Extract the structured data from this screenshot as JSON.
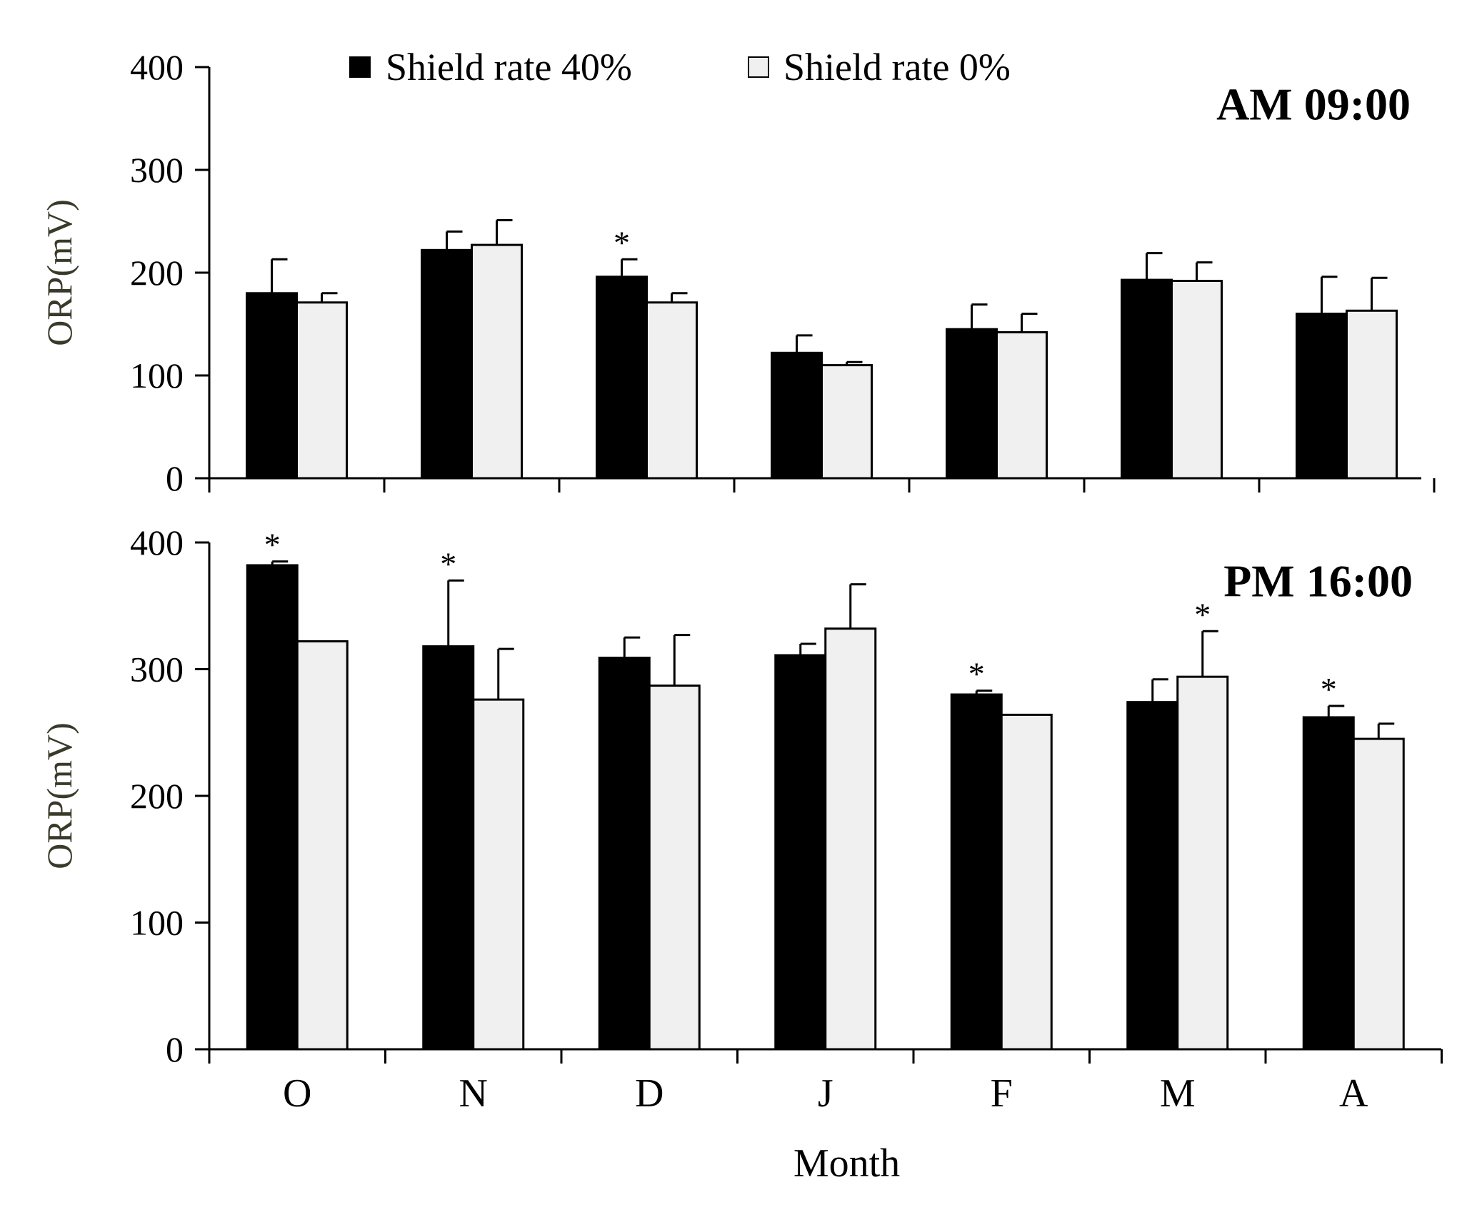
{
  "chart_data": [
    {
      "type": "bar",
      "title": "AM 09:00",
      "xlabel": "",
      "ylabel": "ORP(mV)",
      "ylim": [
        0,
        400
      ],
      "yticks": [
        0,
        100,
        200,
        300,
        400
      ],
      "categories": [
        "O",
        "N",
        "D",
        "J",
        "F",
        "M",
        "A"
      ],
      "series": [
        {
          "name": "Shield rate 40%",
          "color": "#000000",
          "values": [
            180,
            222,
            196,
            122,
            145,
            193,
            160
          ],
          "errors": [
            33,
            18,
            17,
            17,
            24,
            26,
            36
          ],
          "significant": [
            false,
            false,
            true,
            false,
            false,
            false,
            false
          ]
        },
        {
          "name": "Shield rate 0%",
          "color": "#f0f0f0",
          "values": [
            171,
            227,
            171,
            110,
            142,
            192,
            163
          ],
          "errors": [
            9,
            24,
            9,
            3,
            18,
            18,
            32
          ],
          "significant": [
            false,
            false,
            false,
            false,
            false,
            false,
            false
          ]
        }
      ],
      "significance_marker": "*"
    },
    {
      "type": "bar",
      "title": "PM 16:00",
      "xlabel": "Month",
      "ylabel": "ORP(mV)",
      "ylim": [
        0,
        400
      ],
      "yticks": [
        0,
        100,
        200,
        300,
        400
      ],
      "categories": [
        "O",
        "N",
        "D",
        "J",
        "F",
        "M",
        "A"
      ],
      "series": [
        {
          "name": "Shield rate 40%",
          "color": "#000000",
          "values": [
            382,
            318,
            309,
            311,
            280,
            274,
            262
          ],
          "errors": [
            3,
            52,
            16,
            9,
            3,
            18,
            9
          ],
          "significant": [
            true,
            true,
            false,
            false,
            true,
            false,
            true
          ]
        },
        {
          "name": "Shield rate 0%",
          "color": "#f0f0f0",
          "values": [
            322,
            276,
            287,
            332,
            264,
            294,
            245
          ],
          "errors": [
            0,
            40,
            40,
            35,
            0,
            36,
            12
          ],
          "significant": [
            false,
            false,
            false,
            false,
            false,
            true,
            false
          ]
        }
      ],
      "significance_marker": "*"
    }
  ],
  "legend": {
    "items": [
      {
        "label": "Shield rate 40%",
        "color": "#000000"
      },
      {
        "label": "Shield rate 0%",
        "color": "#f0f0f0"
      }
    ]
  }
}
